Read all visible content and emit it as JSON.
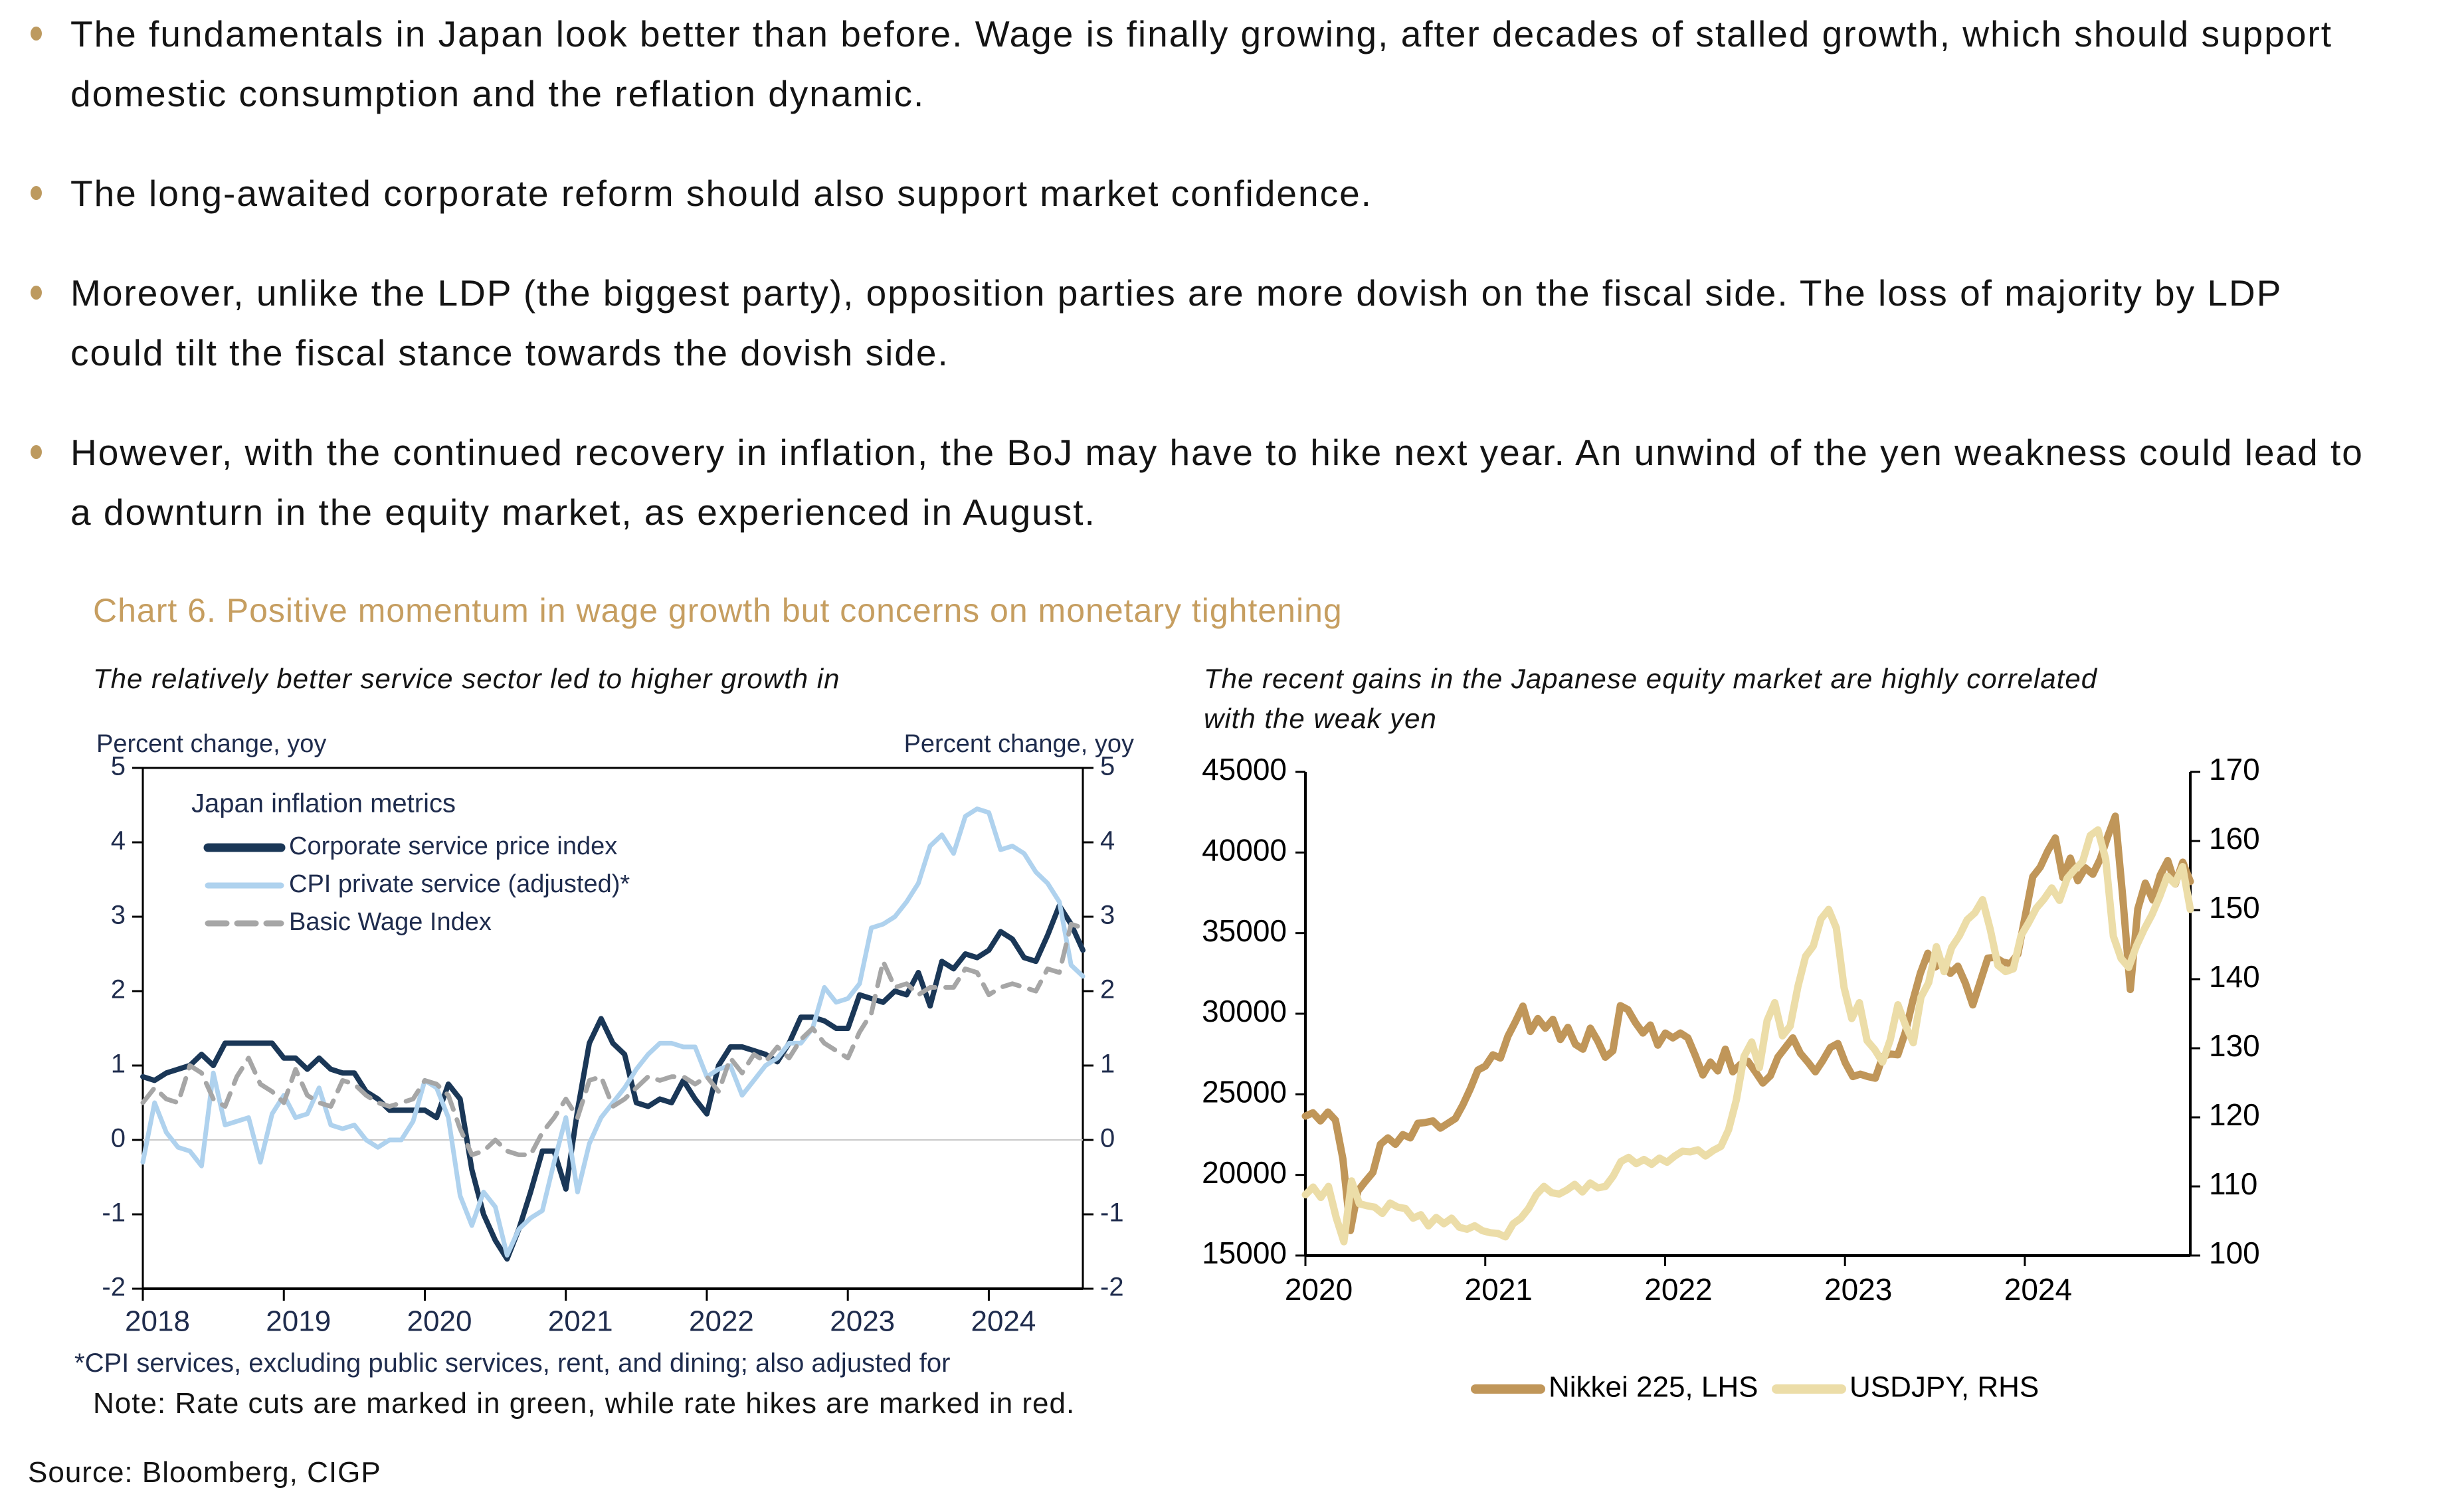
{
  "page": {
    "bullets": [
      "The fundamentals in Japan look better than before. Wage is finally growing, after decades of stalled growth, which should support domestic consumption and the reflation dynamic.",
      "The long-awaited corporate reform should also support market confidence.",
      "Moreover, unlike the LDP (the biggest party), opposition parties are more dovish on the fiscal side. The loss of majority by LDP could tilt the fiscal stance towards the dovish side.",
      "However, with the continued recovery in inflation, the BoJ may have to hike next year. An unwind of the yen weakness could lead to a downturn in the equity market, as experienced in August."
    ],
    "section": {
      "title": "Chart 6. Positive momentum in wage growth but concerns on monetary tightening",
      "left_subtitle": "The relatively better service sector led to higher growth in",
      "right_subtitle_line1": "The recent gains in the Japanese equity market are highly correlated",
      "right_subtitle_line2": "with the weak yen",
      "left_footnote": "*CPI services, excluding public services, rent, and dining; also adjusted for",
      "note": "Note: Rate cuts are marked in green, while rate hikes are marked in red.",
      "source": "Source: Bloomberg, CIGP"
    },
    "colors": {
      "accent_gold": "#C69E60",
      "bullet_dot": "#BD9A5F",
      "navy": "#1A3757",
      "light_blue": "#AFD2EE",
      "gray": "#A6A6A6",
      "nikkei": "#C09659",
      "usdjpy": "#ECDDA8",
      "chart_text_left": "#1F2C4D",
      "chart_text_right": "#000000",
      "axis_black": "#000000",
      "zero_line": "#C9C9C9"
    }
  },
  "chart_data": [
    {
      "type": "line",
      "inner_title": "Japan inflation metrics",
      "ylabel_left": "Percent change, yoy",
      "ylabel_right": "Percent change, yoy",
      "ylim": [
        -2,
        5
      ],
      "yticks": [
        5,
        4,
        3,
        2,
        1,
        0,
        -1,
        -2
      ],
      "xticks": [
        2018,
        2019,
        2020,
        2021,
        2022,
        2023,
        2024
      ],
      "x_start": 2018.0,
      "x_end": 2024.667,
      "points_per_year": 12,
      "grid": "zero line only",
      "legend_position": "inside top-left",
      "series": [
        {
          "name": "Corporate service price index",
          "color": "#1A3757",
          "dash": null,
          "width": 8,
          "values": [
            0.85,
            0.8,
            0.9,
            0.95,
            1.0,
            1.15,
            1.0,
            1.3,
            1.3,
            1.3,
            1.3,
            1.3,
            1.1,
            1.1,
            0.95,
            1.1,
            0.95,
            0.9,
            0.9,
            0.65,
            0.55,
            0.4,
            0.4,
            0.4,
            0.4,
            0.3,
            0.75,
            0.55,
            -0.4,
            -1.0,
            -1.35,
            -1.6,
            -1.2,
            -0.7,
            -0.15,
            -0.15,
            -0.66,
            0.4,
            1.3,
            1.63,
            1.3,
            1.15,
            0.5,
            0.45,
            0.55,
            0.5,
            0.8,
            0.55,
            0.35,
            1.0,
            1.25,
            1.25,
            1.2,
            1.15,
            1.05,
            1.3,
            1.65,
            1.65,
            1.6,
            1.5,
            1.5,
            1.95,
            1.9,
            1.85,
            2.0,
            1.95,
            2.25,
            1.8,
            2.4,
            2.3,
            2.5,
            2.45,
            2.55,
            2.8,
            2.7,
            2.45,
            2.4,
            2.75,
            3.15,
            2.9,
            2.55
          ]
        },
        {
          "name": "CPI private service (adjusted)*",
          "color": "#AFD2EE",
          "dash": null,
          "width": 7,
          "values": [
            -0.3,
            0.5,
            0.1,
            -0.1,
            -0.15,
            -0.35,
            0.9,
            0.2,
            0.25,
            0.3,
            -0.3,
            0.35,
            0.6,
            0.3,
            0.35,
            0.7,
            0.2,
            0.15,
            0.2,
            0.0,
            -0.1,
            0.0,
            0.0,
            0.25,
            0.8,
            0.7,
            0.3,
            -0.75,
            -1.15,
            -0.7,
            -0.9,
            -1.55,
            -1.2,
            -1.05,
            -0.95,
            -0.3,
            0.3,
            -0.7,
            -0.05,
            0.3,
            0.5,
            0.7,
            0.95,
            1.15,
            1.3,
            1.3,
            1.25,
            1.25,
            0.85,
            0.95,
            1.0,
            0.6,
            0.8,
            1.0,
            1.1,
            1.3,
            1.3,
            1.5,
            2.05,
            1.85,
            1.9,
            2.1,
            2.85,
            2.9,
            3.0,
            3.2,
            3.45,
            3.95,
            4.1,
            3.85,
            4.35,
            4.45,
            4.4,
            3.9,
            3.95,
            3.85,
            3.6,
            3.45,
            3.2,
            2.35,
            2.2
          ]
        },
        {
          "name": "Basic Wage Index",
          "color": "#A6A6A6",
          "dash": "26 16",
          "width": 7,
          "values": [
            0.5,
            0.7,
            0.55,
            0.5,
            1.0,
            0.9,
            0.55,
            0.45,
            0.85,
            1.1,
            0.75,
            0.65,
            0.5,
            0.95,
            0.6,
            0.5,
            0.45,
            0.8,
            0.75,
            0.6,
            0.5,
            0.45,
            0.5,
            0.55,
            0.8,
            0.75,
            0.6,
            0.15,
            -0.2,
            -0.15,
            0.0,
            -0.15,
            -0.2,
            -0.2,
            0.1,
            0.3,
            0.55,
            0.3,
            0.8,
            0.85,
            0.45,
            0.55,
            0.7,
            0.85,
            0.8,
            0.85,
            0.85,
            0.75,
            0.85,
            0.65,
            1.1,
            0.9,
            1.15,
            1.05,
            1.25,
            1.1,
            1.35,
            1.5,
            1.3,
            1.2,
            1.1,
            1.45,
            1.7,
            2.4,
            2.05,
            2.1,
            1.95,
            2.05,
            2.05,
            2.05,
            2.3,
            2.25,
            1.95,
            2.05,
            2.1,
            2.05,
            2.0,
            2.3,
            2.25,
            2.9,
            2.85
          ]
        }
      ]
    },
    {
      "type": "line",
      "axes": {
        "left": {
          "ylim": [
            15000,
            45000
          ],
          "ticks": [
            45000,
            40000,
            35000,
            30000,
            25000,
            20000,
            15000
          ]
        },
        "right": {
          "ylim": [
            100,
            170
          ],
          "ticks": [
            170,
            160,
            150,
            140,
            130,
            120,
            110,
            100
          ]
        }
      },
      "xticks": [
        2020,
        2021,
        2022,
        2023,
        2024
      ],
      "x_start": 2020.0,
      "x_end": 2024.92,
      "legend_position": "bottom",
      "series": [
        {
          "name": "Nikkei 225, LHS",
          "axis": "left",
          "color": "#C09659",
          "width": 11,
          "values": [
            23650,
            23850,
            23350,
            23900,
            23400,
            21000,
            16550,
            19000,
            19600,
            20150,
            21900,
            22300,
            21900,
            22500,
            22300,
            23200,
            23250,
            23350,
            22900,
            23200,
            23500,
            24350,
            25350,
            26500,
            26750,
            27450,
            27250,
            28600,
            29500,
            30470,
            28900,
            29700,
            29100,
            29650,
            28400,
            29150,
            28100,
            27800,
            29100,
            28300,
            27300,
            27700,
            30500,
            30250,
            29450,
            28800,
            29300,
            28050,
            28800,
            28500,
            28800,
            28500,
            27400,
            26200,
            27000,
            26450,
            27800,
            26400,
            26850,
            27050,
            26400,
            25700,
            26150,
            27300,
            27900,
            28500,
            27550,
            27000,
            26400,
            27100,
            27900,
            28150,
            26950,
            26100,
            26250,
            26100,
            26000,
            27350,
            27500,
            27450,
            28850,
            30800,
            32500,
            33750,
            32900,
            33200,
            32500,
            32950,
            31900,
            30550,
            32000,
            33450,
            33500,
            33200,
            33100,
            33700,
            36100,
            38500,
            39100,
            40100,
            40900,
            38450,
            39650,
            38250,
            39050,
            38650,
            39600,
            41000,
            42250,
            37200,
            31500,
            36500,
            38100,
            37050,
            38600,
            39500,
            38050,
            39400,
            38200
          ]
        },
        {
          "name": "USDJPY, RHS",
          "axis": "right",
          "color": "#ECDDA8",
          "width": 11,
          "values": [
            108.8,
            109.9,
            108.4,
            110.0,
            105.5,
            102.0,
            110.8,
            107.5,
            107.2,
            107.0,
            106.1,
            107.6,
            107.0,
            106.8,
            105.4,
            105.9,
            104.3,
            105.5,
            104.6,
            105.4,
            104.1,
            103.8,
            104.3,
            103.6,
            103.3,
            103.2,
            102.7,
            104.6,
            105.4,
            106.8,
            108.8,
            110.0,
            109.1,
            108.9,
            109.5,
            110.3,
            109.2,
            110.5,
            109.8,
            110.0,
            111.5,
            113.6,
            114.2,
            113.3,
            113.9,
            113.2,
            114.1,
            113.5,
            114.4,
            115.1,
            115.0,
            115.3,
            114.4,
            115.2,
            115.8,
            118.2,
            122.5,
            128.8,
            130.9,
            127.2,
            134.0,
            136.6,
            131.8,
            133.2,
            138.9,
            143.3,
            144.8,
            148.7,
            150.1,
            147.4,
            138.8,
            134.3,
            136.6,
            131.1,
            129.8,
            128.0,
            131.2,
            136.3,
            133.3,
            130.8,
            137.4,
            139.5,
            144.7,
            141.1,
            144.6,
            146.3,
            148.6,
            149.6,
            151.5,
            147.2,
            142.0,
            141.1,
            141.5,
            146.3,
            148.2,
            150.3,
            151.6,
            153.2,
            151.4,
            154.6,
            155.9,
            157.0,
            160.8,
            161.6,
            157.4,
            146.2,
            143.0,
            141.7,
            144.8,
            147.2,
            149.3,
            151.9,
            154.9,
            153.8,
            156.3,
            150.1
          ]
        }
      ]
    }
  ]
}
